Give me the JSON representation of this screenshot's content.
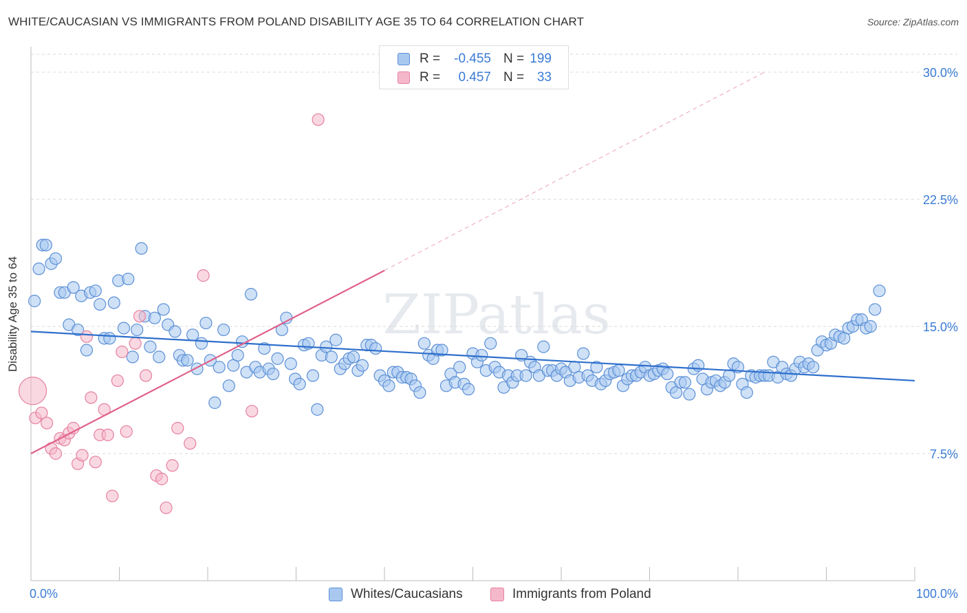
{
  "title": "WHITE/CAUCASIAN VS IMMIGRANTS FROM POLAND DISABILITY AGE 35 TO 64 CORRELATION CHART",
  "source": "Source: ZipAtlas.com",
  "watermark": "ZIPatlas",
  "legend_top": [
    {
      "r_label": "R =",
      "r_value": "-0.455",
      "n_label": "N =",
      "n_value": "199"
    },
    {
      "r_label": "R =",
      "r_value": "0.457",
      "n_label": "N =",
      "n_value": "33"
    }
  ],
  "chart_data": {
    "type": "scatter",
    "title": "WHITE/CAUCASIAN VS IMMIGRANTS FROM POLAND DISABILITY AGE 35 TO 64 CORRELATION CHART",
    "xlabel": "",
    "ylabel": "Disability Age 35 to 64",
    "xlim": [
      0,
      100
    ],
    "ylim": [
      0,
      31.5
    ],
    "x_tick_labels": [
      "0.0%",
      "100.0%"
    ],
    "y_ticks": [
      7.5,
      15.0,
      22.5,
      30.0
    ],
    "y_tick_labels": [
      "7.5%",
      "15.0%",
      "22.5%",
      "30.0%"
    ],
    "grid": true,
    "legend_position": "bottom-center",
    "colors": {
      "blue_fill": "#a8c8f0",
      "blue_stroke": "#5b8fd6",
      "blue_line": "#2e6fcc",
      "pink_fill": "#f5b8cb",
      "pink_stroke": "#e5809f",
      "pink_line": "#e0608a",
      "tick_label": "#3a7bd5"
    },
    "series": [
      {
        "name": "Whites/Caucasians",
        "color": "#a8c8f0",
        "trend": {
          "x": [
            0,
            100
          ],
          "y": [
            14.7,
            11.8
          ]
        },
        "points": [
          [
            0.4,
            16.5
          ],
          [
            0.9,
            18.4
          ],
          [
            1.3,
            19.8
          ],
          [
            1.7,
            19.8
          ],
          [
            2.3,
            18.7
          ],
          [
            2.8,
            19.0
          ],
          [
            3.3,
            17.0
          ],
          [
            3.8,
            17.0
          ],
          [
            4.3,
            15.1
          ],
          [
            4.8,
            17.3
          ],
          [
            5.3,
            14.8
          ],
          [
            5.7,
            16.8
          ],
          [
            6.3,
            13.6
          ],
          [
            6.7,
            17.0
          ],
          [
            7.3,
            17.1
          ],
          [
            7.8,
            16.3
          ],
          [
            8.3,
            14.3
          ],
          [
            8.9,
            14.3
          ],
          [
            9.4,
            16.4
          ],
          [
            9.9,
            17.7
          ],
          [
            10.5,
            14.9
          ],
          [
            11.0,
            17.8
          ],
          [
            11.5,
            13.2
          ],
          [
            12.0,
            14.8
          ],
          [
            12.5,
            19.6
          ],
          [
            12.9,
            15.6
          ],
          [
            13.5,
            13.8
          ],
          [
            14.0,
            15.5
          ],
          [
            14.5,
            13.2
          ],
          [
            15.0,
            16.0
          ],
          [
            15.5,
            15.1
          ],
          [
            16.3,
            14.7
          ],
          [
            16.8,
            13.3
          ],
          [
            17.2,
            13.0
          ],
          [
            17.7,
            13.0
          ],
          [
            18.3,
            14.5
          ],
          [
            18.8,
            12.5
          ],
          [
            19.3,
            14.0
          ],
          [
            19.8,
            15.2
          ],
          [
            20.3,
            13.0
          ],
          [
            20.8,
            10.5
          ],
          [
            21.3,
            12.6
          ],
          [
            21.8,
            14.8
          ],
          [
            22.4,
            11.5
          ],
          [
            22.9,
            12.7
          ],
          [
            23.4,
            13.3
          ],
          [
            23.9,
            14.1
          ],
          [
            24.4,
            12.3
          ],
          [
            24.9,
            16.9
          ],
          [
            25.4,
            12.6
          ],
          [
            25.9,
            12.3
          ],
          [
            26.4,
            13.7
          ],
          [
            26.9,
            12.5
          ],
          [
            27.4,
            12.2
          ],
          [
            27.9,
            13.1
          ],
          [
            28.4,
            14.8
          ],
          [
            28.9,
            15.5
          ],
          [
            29.4,
            12.8
          ],
          [
            29.9,
            11.9
          ],
          [
            30.4,
            11.6
          ],
          [
            30.9,
            13.9
          ],
          [
            31.4,
            14.0
          ],
          [
            31.9,
            12.1
          ],
          [
            32.4,
            10.1
          ],
          [
            32.9,
            13.3
          ],
          [
            33.4,
            13.8
          ],
          [
            34.0,
            13.2
          ],
          [
            34.5,
            14.2
          ],
          [
            35.0,
            12.5
          ],
          [
            35.5,
            12.8
          ],
          [
            36.0,
            13.1
          ],
          [
            36.5,
            13.2
          ],
          [
            37.0,
            12.4
          ],
          [
            37.5,
            12.7
          ],
          [
            38.0,
            13.9
          ],
          [
            38.5,
            13.9
          ],
          [
            39.0,
            13.7
          ],
          [
            39.5,
            12.1
          ],
          [
            40.0,
            11.8
          ],
          [
            40.5,
            11.5
          ],
          [
            41.0,
            12.3
          ],
          [
            41.5,
            12.3
          ],
          [
            42.0,
            12.0
          ],
          [
            42.5,
            12.0
          ],
          [
            43.0,
            11.9
          ],
          [
            43.5,
            11.5
          ],
          [
            44.0,
            11.1
          ],
          [
            44.5,
            14.0
          ],
          [
            45.0,
            13.3
          ],
          [
            45.5,
            13.1
          ],
          [
            46.0,
            13.6
          ],
          [
            46.5,
            13.6
          ],
          [
            47.0,
            11.5
          ],
          [
            47.5,
            12.2
          ],
          [
            48.0,
            11.7
          ],
          [
            48.5,
            12.6
          ],
          [
            49.0,
            11.6
          ],
          [
            49.5,
            11.3
          ],
          [
            50.0,
            13.4
          ],
          [
            50.5,
            12.9
          ],
          [
            51.0,
            13.3
          ],
          [
            51.5,
            12.4
          ],
          [
            52.0,
            14.0
          ],
          [
            52.5,
            12.6
          ],
          [
            53.0,
            12.3
          ],
          [
            53.5,
            11.4
          ],
          [
            54.0,
            12.1
          ],
          [
            54.5,
            11.7
          ],
          [
            55.0,
            12.1
          ],
          [
            55.5,
            13.3
          ],
          [
            56.0,
            12.1
          ],
          [
            56.5,
            12.9
          ],
          [
            57.0,
            12.6
          ],
          [
            57.5,
            12.1
          ],
          [
            58.0,
            13.8
          ],
          [
            58.5,
            12.4
          ],
          [
            59.0,
            12.4
          ],
          [
            59.5,
            12.1
          ],
          [
            60.0,
            12.5
          ],
          [
            60.5,
            12.3
          ],
          [
            61.0,
            11.8
          ],
          [
            61.5,
            12.6
          ],
          [
            62.0,
            12.0
          ],
          [
            62.5,
            13.4
          ],
          [
            63.0,
            12.1
          ],
          [
            63.5,
            11.8
          ],
          [
            64.0,
            12.6
          ],
          [
            64.5,
            11.6
          ],
          [
            65.0,
            11.8
          ],
          [
            65.5,
            12.2
          ],
          [
            66.0,
            12.3
          ],
          [
            66.5,
            12.4
          ],
          [
            67.0,
            11.5
          ],
          [
            67.5,
            11.9
          ],
          [
            68.0,
            12.1
          ],
          [
            68.5,
            12.1
          ],
          [
            69.0,
            12.3
          ],
          [
            69.5,
            12.6
          ],
          [
            70.0,
            12.1
          ],
          [
            70.5,
            12.2
          ],
          [
            71.0,
            12.4
          ],
          [
            71.5,
            12.5
          ],
          [
            72.0,
            12.2
          ],
          [
            72.5,
            11.4
          ],
          [
            73.0,
            11.1
          ],
          [
            73.5,
            11.7
          ],
          [
            74.0,
            11.7
          ],
          [
            74.5,
            11.0
          ],
          [
            75.0,
            12.5
          ],
          [
            75.5,
            12.7
          ],
          [
            76.0,
            11.9
          ],
          [
            76.5,
            11.3
          ],
          [
            77.0,
            11.7
          ],
          [
            77.5,
            11.8
          ],
          [
            78.0,
            11.5
          ],
          [
            78.5,
            11.7
          ],
          [
            79.0,
            12.1
          ],
          [
            79.5,
            12.8
          ],
          [
            80.0,
            12.6
          ],
          [
            80.5,
            11.6
          ],
          [
            81.0,
            11.1
          ],
          [
            81.5,
            12.1
          ],
          [
            82.0,
            12.0
          ],
          [
            82.5,
            12.1
          ],
          [
            83.0,
            12.1
          ],
          [
            83.5,
            12.1
          ],
          [
            84.0,
            12.9
          ],
          [
            84.5,
            12.0
          ],
          [
            85.0,
            12.6
          ],
          [
            85.5,
            12.2
          ],
          [
            86.0,
            12.1
          ],
          [
            86.5,
            12.5
          ],
          [
            87.0,
            12.9
          ],
          [
            87.5,
            12.6
          ],
          [
            88.0,
            12.8
          ],
          [
            88.5,
            12.6
          ],
          [
            89.0,
            13.6
          ],
          [
            89.5,
            14.1
          ],
          [
            90.0,
            13.9
          ],
          [
            90.5,
            14.0
          ],
          [
            91.0,
            14.5
          ],
          [
            91.5,
            14.4
          ],
          [
            92.0,
            14.3
          ],
          [
            92.5,
            14.9
          ],
          [
            93.0,
            15.0
          ],
          [
            93.5,
            15.4
          ],
          [
            94.0,
            15.4
          ],
          [
            94.5,
            14.9
          ],
          [
            95.0,
            15.0
          ],
          [
            95.5,
            16.0
          ],
          [
            96.0,
            17.1
          ]
        ]
      },
      {
        "name": "Immigrants from Poland",
        "color": "#f5b8cb",
        "trend": {
          "x": [
            0,
            40
          ],
          "y": [
            7.5,
            18.3
          ]
        },
        "trend_ext": {
          "x": [
            40,
            83
          ],
          "y": [
            18.3,
            30.0
          ]
        },
        "points": [
          [
            0.5,
            9.6
          ],
          [
            1.2,
            9.9
          ],
          [
            1.8,
            9.3
          ],
          [
            2.3,
            7.8
          ],
          [
            2.8,
            7.5
          ],
          [
            3.3,
            8.4
          ],
          [
            3.8,
            8.3
          ],
          [
            4.3,
            8.7
          ],
          [
            4.8,
            9.0
          ],
          [
            5.3,
            6.9
          ],
          [
            5.8,
            7.4
          ],
          [
            6.3,
            14.4
          ],
          [
            6.8,
            10.8
          ],
          [
            7.3,
            7.0
          ],
          [
            7.8,
            8.6
          ],
          [
            8.3,
            10.1
          ],
          [
            8.7,
            8.6
          ],
          [
            9.2,
            5.0
          ],
          [
            9.8,
            11.8
          ],
          [
            10.3,
            13.5
          ],
          [
            10.8,
            8.8
          ],
          [
            11.8,
            14.0
          ],
          [
            12.3,
            15.6
          ],
          [
            13.0,
            12.1
          ],
          [
            14.2,
            6.2
          ],
          [
            14.8,
            6.0
          ],
          [
            15.3,
            4.3
          ],
          [
            16.0,
            6.8
          ],
          [
            16.6,
            9.0
          ],
          [
            18.0,
            8.1
          ],
          [
            19.5,
            18.0
          ],
          [
            25.0,
            10.0
          ],
          [
            32.5,
            27.2
          ]
        ]
      }
    ],
    "large_point": {
      "series": "Immigrants from Poland",
      "x": 0.2,
      "y": 11.2
    }
  }
}
